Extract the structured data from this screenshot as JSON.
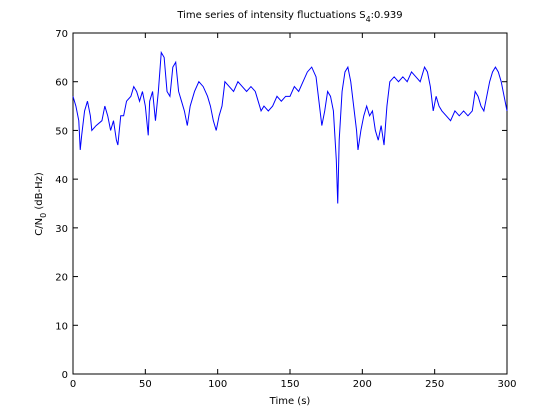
{
  "chart_data": {
    "type": "line",
    "title": [
      "Time series of intensity fluctuations S",
      "4",
      ":0.939"
    ],
    "xlabel": "Time (s)",
    "ylabel": [
      "C/N",
      "0",
      " (dB-Hz)"
    ],
    "color": "#0000ff",
    "x": [
      0,
      2,
      4,
      5,
      6,
      8,
      10,
      12,
      13,
      16,
      20,
      22,
      24,
      26,
      28,
      30,
      31,
      33,
      35,
      37,
      40,
      42,
      44,
      46,
      48,
      50,
      52,
      53,
      55,
      57,
      59,
      61,
      63,
      65,
      67,
      69,
      71,
      73,
      75,
      77,
      79,
      81,
      84,
      87,
      90,
      93,
      95,
      97,
      99,
      101,
      103,
      105,
      108,
      111,
      114,
      117,
      120,
      123,
      126,
      128,
      130,
      132,
      135,
      138,
      141,
      144,
      147,
      150,
      153,
      156,
      159,
      162,
      165,
      168,
      170,
      172,
      174,
      176,
      178,
      180,
      182,
      183,
      184,
      186,
      188,
      190,
      192,
      194,
      196,
      197,
      199,
      201,
      203,
      205,
      207,
      209,
      211,
      213,
      215,
      217,
      219,
      222,
      225,
      228,
      231,
      234,
      237,
      240,
      243,
      245,
      247,
      249,
      251,
      253,
      255,
      258,
      261,
      264,
      267,
      270,
      273,
      276,
      278,
      280,
      282,
      284,
      286,
      288,
      290,
      292,
      294,
      296,
      298,
      300
    ],
    "values": [
      57,
      55,
      52,
      46,
      49,
      54,
      56,
      53,
      50,
      51,
      52,
      55,
      53,
      50,
      52,
      48,
      47,
      53,
      53,
      56,
      57,
      59,
      58,
      56,
      58,
      55,
      49,
      56,
      58,
      52,
      58,
      66,
      65,
      58,
      57,
      63,
      64,
      58,
      56,
      54,
      51,
      55,
      58,
      60,
      59,
      57,
      55,
      52,
      50,
      53,
      55,
      60,
      59,
      58,
      60,
      59,
      58,
      59,
      58,
      56,
      54,
      55,
      54,
      55,
      57,
      56,
      57,
      57,
      59,
      58,
      60,
      62,
      63,
      61,
      56,
      51,
      54,
      58,
      57,
      54,
      44,
      35,
      48,
      58,
      62,
      63,
      60,
      55,
      50,
      46,
      50,
      53,
      55,
      53,
      54,
      50,
      48,
      51,
      47,
      55,
      60,
      61,
      60,
      61,
      60,
      62,
      61,
      60,
      63,
      62,
      59,
      54,
      57,
      55,
      54,
      53,
      52,
      54,
      53,
      54,
      53,
      54,
      58,
      57,
      55,
      54,
      57,
      60,
      62,
      63,
      62,
      60,
      57,
      54
    ],
    "xlim": [
      0,
      300
    ],
    "ylim": [
      0,
      70
    ],
    "xticks": [
      0,
      50,
      100,
      150,
      200,
      250,
      300
    ],
    "yticks": [
      0,
      10,
      20,
      30,
      40,
      50,
      60,
      70
    ]
  }
}
